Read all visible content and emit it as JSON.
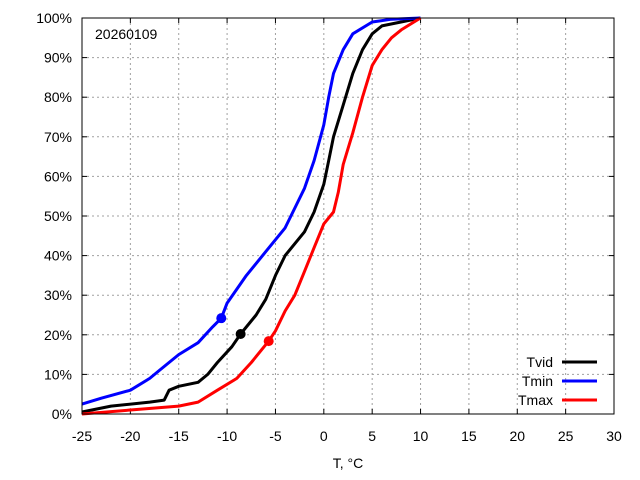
{
  "chart_data": {
    "type": "line",
    "title": "",
    "annotation": "20260109",
    "xlabel": "T, °C",
    "ylabel": "",
    "xlim": [
      -25,
      30
    ],
    "ylim": [
      0,
      100
    ],
    "xticks": [
      "-25",
      "-20",
      "-15",
      "-10",
      "-5",
      "0",
      "5",
      "10",
      "15",
      "20",
      "25",
      "30"
    ],
    "yticks": [
      "0%",
      "10%",
      "20%",
      "30%",
      "40%",
      "50%",
      "60%",
      "70%",
      "80%",
      "90%",
      "100%"
    ],
    "grid": true,
    "legend_position": "bottom-right",
    "series": [
      {
        "name": "Tvid",
        "color": "#000000",
        "marker": [
          -8.6,
          20.2
        ],
        "points": [
          [
            -25,
            0.5
          ],
          [
            -22,
            2
          ],
          [
            -18,
            3
          ],
          [
            -16.5,
            3.5
          ],
          [
            -16,
            6
          ],
          [
            -15,
            7
          ],
          [
            -13,
            8
          ],
          [
            -12,
            10
          ],
          [
            -11,
            13
          ],
          [
            -9.5,
            17
          ],
          [
            -8.6,
            20.2
          ],
          [
            -7,
            25
          ],
          [
            -6,
            29
          ],
          [
            -5,
            35
          ],
          [
            -4,
            40
          ],
          [
            -2,
            46
          ],
          [
            -1,
            51
          ],
          [
            0,
            58
          ],
          [
            0.5,
            64
          ],
          [
            1,
            70
          ],
          [
            2,
            78
          ],
          [
            3,
            86
          ],
          [
            4,
            92
          ],
          [
            5,
            96
          ],
          [
            6,
            98
          ],
          [
            9,
            99.5
          ],
          [
            10,
            100
          ]
        ]
      },
      {
        "name": "Tmin",
        "color": "#0000ff",
        "marker": [
          -10.6,
          24.2
        ],
        "points": [
          [
            -25,
            2.5
          ],
          [
            -23,
            4
          ],
          [
            -20,
            6
          ],
          [
            -18,
            9
          ],
          [
            -17,
            11
          ],
          [
            -15,
            15
          ],
          [
            -13,
            18
          ],
          [
            -11.5,
            22
          ],
          [
            -10.6,
            24.2
          ],
          [
            -10,
            28
          ],
          [
            -8,
            35
          ],
          [
            -6,
            41
          ],
          [
            -4,
            47
          ],
          [
            -3,
            52
          ],
          [
            -2,
            57
          ],
          [
            -1,
            64
          ],
          [
            0,
            73
          ],
          [
            0.5,
            80
          ],
          [
            1,
            86
          ],
          [
            2,
            92
          ],
          [
            3,
            96
          ],
          [
            5,
            99
          ],
          [
            7,
            99.7
          ],
          [
            10,
            100
          ]
        ]
      },
      {
        "name": "Tmax",
        "color": "#ff0000",
        "marker": [
          -5.7,
          18.4
        ],
        "points": [
          [
            -25,
            0
          ],
          [
            -20,
            1
          ],
          [
            -15,
            2
          ],
          [
            -13,
            3
          ],
          [
            -11,
            6
          ],
          [
            -9,
            9
          ],
          [
            -7.5,
            13
          ],
          [
            -5.7,
            18.4
          ],
          [
            -5,
            21
          ],
          [
            -4,
            26
          ],
          [
            -3,
            30
          ],
          [
            -2,
            36
          ],
          [
            -1,
            42
          ],
          [
            0,
            48
          ],
          [
            1,
            51
          ],
          [
            1.5,
            56
          ],
          [
            2,
            63
          ],
          [
            3,
            71
          ],
          [
            4,
            80
          ],
          [
            5,
            88
          ],
          [
            6,
            92
          ],
          [
            7,
            95
          ],
          [
            8,
            97
          ],
          [
            9,
            98.5
          ],
          [
            10,
            100
          ]
        ]
      }
    ]
  }
}
